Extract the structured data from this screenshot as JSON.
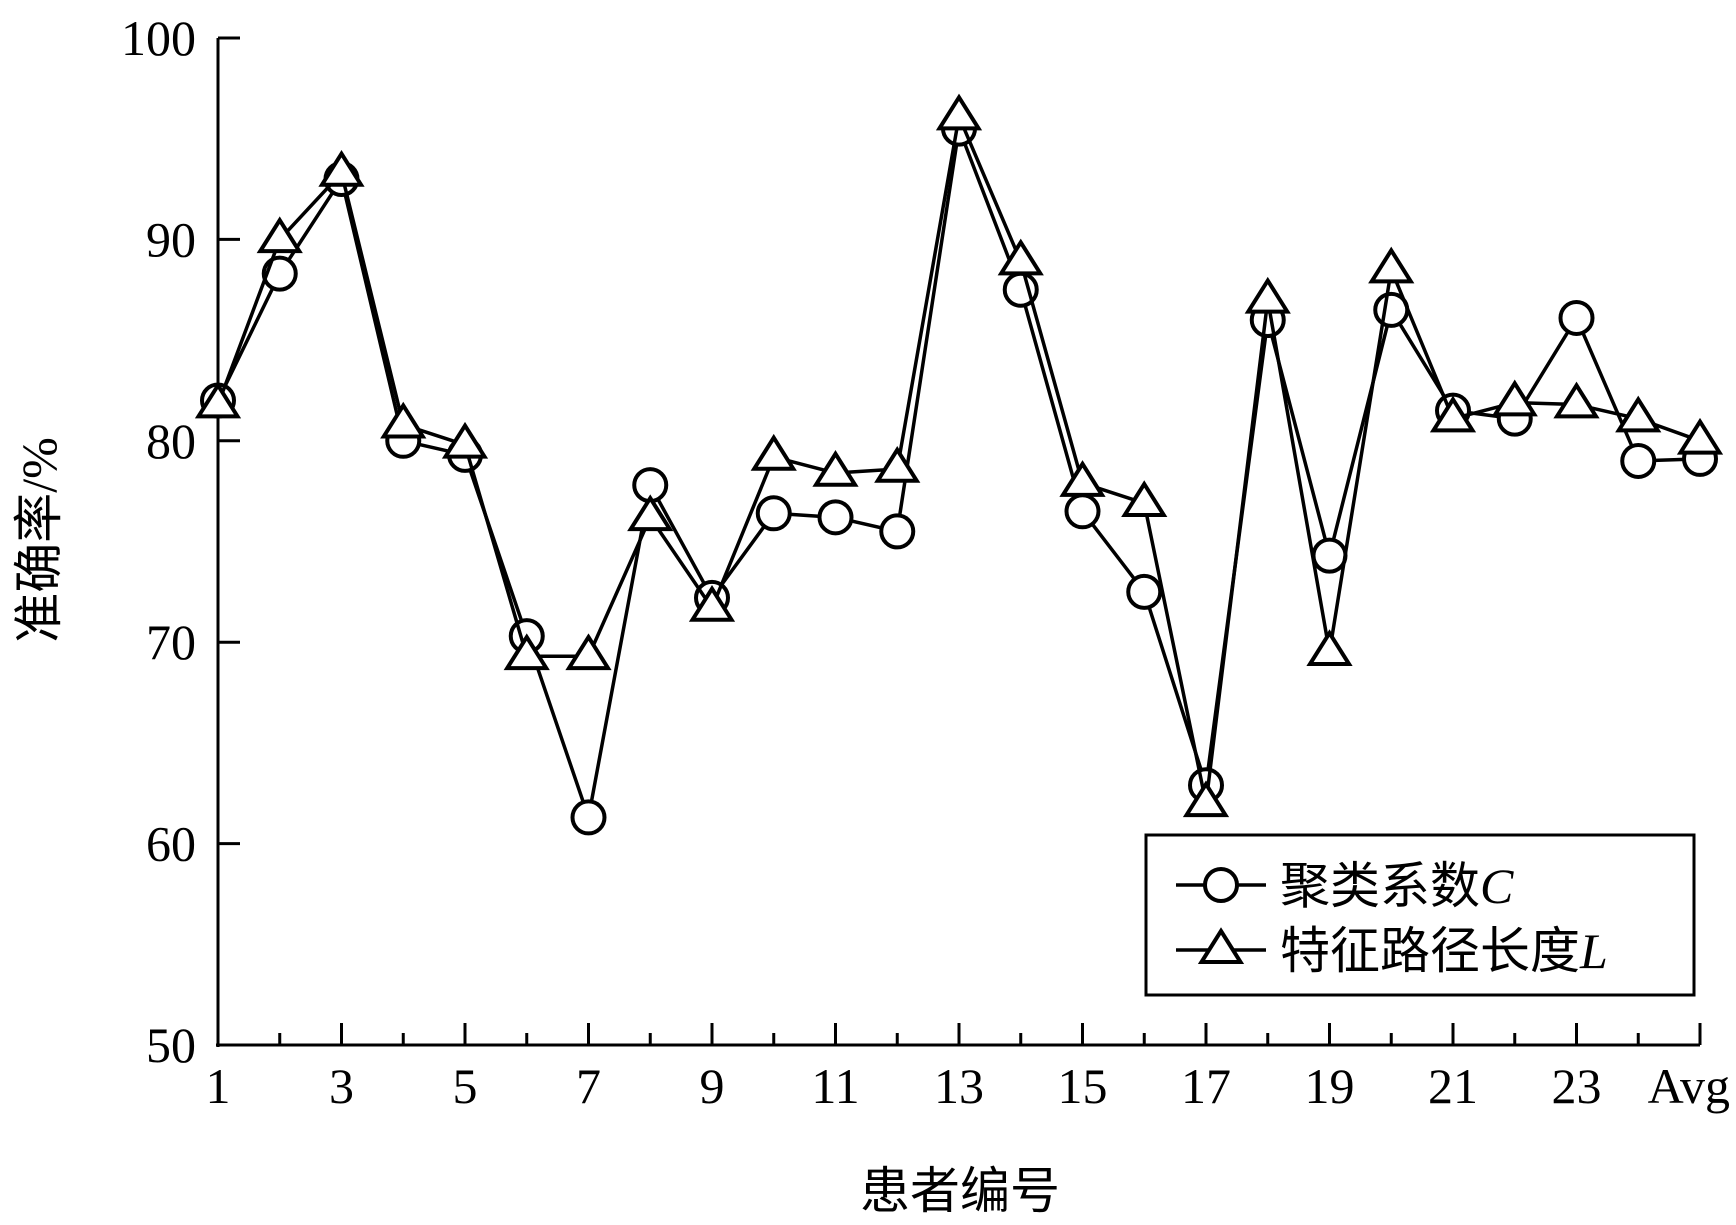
{
  "chart_data": {
    "type": "line",
    "title": "",
    "xlabel": "患者编号",
    "ylabel": "准确率/%",
    "ylim": [
      50,
      100
    ],
    "yticks": [
      50,
      60,
      70,
      80,
      90,
      100
    ],
    "categories": [
      "1",
      "2",
      "3",
      "4",
      "5",
      "6",
      "7",
      "8",
      "9",
      "10",
      "11",
      "12",
      "13",
      "14",
      "15",
      "16",
      "17",
      "18",
      "19",
      "20",
      "21",
      "22",
      "23",
      "24",
      "Avg"
    ],
    "x_tick_labels": [
      "1",
      "3",
      "5",
      "7",
      "9",
      "11",
      "13",
      "15",
      "17",
      "19",
      "21",
      "23",
      "Avg"
    ],
    "grid": false,
    "legend_position": "bottom-right",
    "series": [
      {
        "name": "聚类系数",
        "name_italic": "C",
        "marker": "circle",
        "values": [
          82.0,
          88.3,
          93.0,
          80.0,
          79.3,
          70.3,
          61.3,
          77.8,
          72.2,
          76.4,
          76.2,
          75.5,
          95.5,
          87.5,
          76.5,
          72.5,
          62.9,
          86.0,
          74.3,
          86.5,
          81.5,
          81.1,
          86.1,
          79.0,
          79.1
        ]
      },
      {
        "name": "特征路径长度",
        "name_italic": "L",
        "marker": "triangle",
        "values": [
          81.8,
          90.0,
          93.3,
          80.8,
          79.8,
          69.3,
          69.3,
          76.2,
          71.7,
          79.2,
          78.4,
          78.6,
          96.1,
          88.9,
          77.9,
          76.9,
          62.0,
          87.0,
          69.5,
          88.5,
          81.1,
          81.9,
          81.8,
          81.1,
          80.0
        ]
      }
    ]
  }
}
